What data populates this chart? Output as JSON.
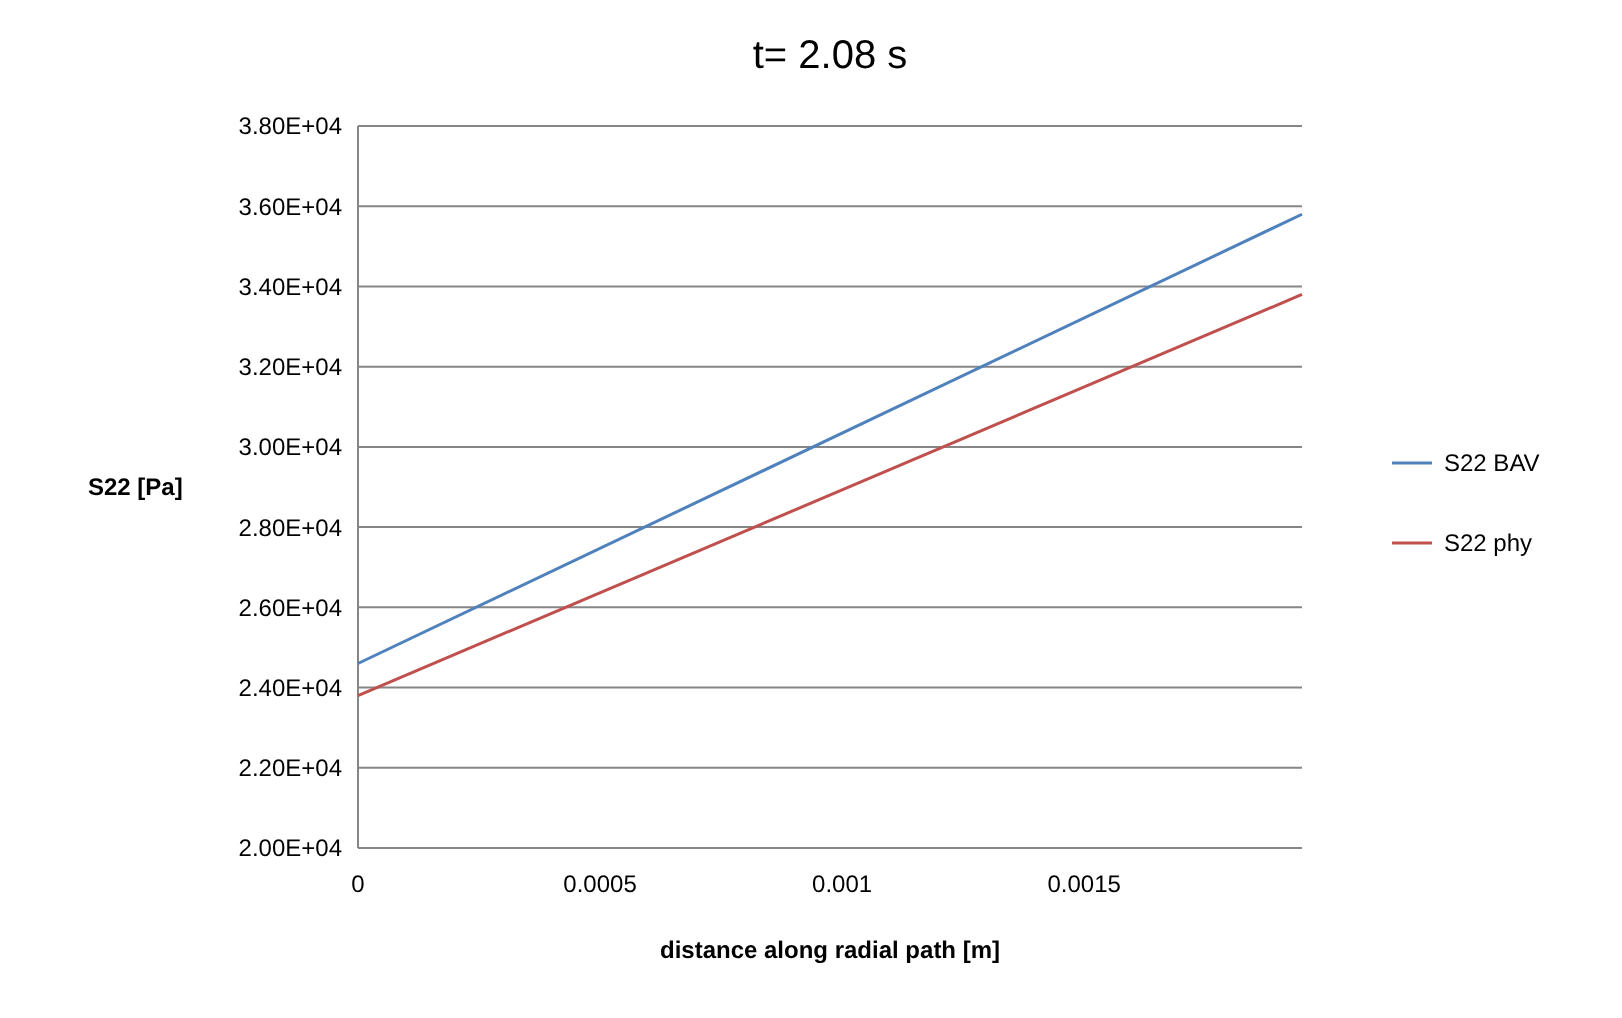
{
  "chart_data": {
    "type": "line",
    "title": "t= 2.08 s",
    "xlabel": "distance along radial path [m]",
    "ylabel": "S22 [Pa]",
    "x": [
      0,
      0.00195
    ],
    "series": [
      {
        "name": "S22 BAV",
        "color": "#4f81bd",
        "values": [
          24600,
          35800
        ]
      },
      {
        "name": "S22 phy",
        "color": "#c0504d",
        "values": [
          23800,
          33800
        ]
      }
    ],
    "xlim": [
      0,
      0.00195
    ],
    "xticks": [
      0,
      0.0005,
      0.001,
      0.0015
    ],
    "ylim": [
      20000,
      38000
    ],
    "yticks": [
      {
        "value": 20000,
        "label": "2.00E+04"
      },
      {
        "value": 22000,
        "label": "2.20E+04"
      },
      {
        "value": 24000,
        "label": "2.40E+04"
      },
      {
        "value": 26000,
        "label": "2.60E+04"
      },
      {
        "value": 28000,
        "label": "2.80E+04"
      },
      {
        "value": 30000,
        "label": "3.00E+04"
      },
      {
        "value": 32000,
        "label": "3.20E+04"
      },
      {
        "value": 34000,
        "label": "3.40E+04"
      },
      {
        "value": 36000,
        "label": "3.60E+04"
      },
      {
        "value": 38000,
        "label": "3.80E+04"
      }
    ],
    "grid": "y",
    "legend": "right",
    "marker": "none",
    "line_style": "solid"
  }
}
